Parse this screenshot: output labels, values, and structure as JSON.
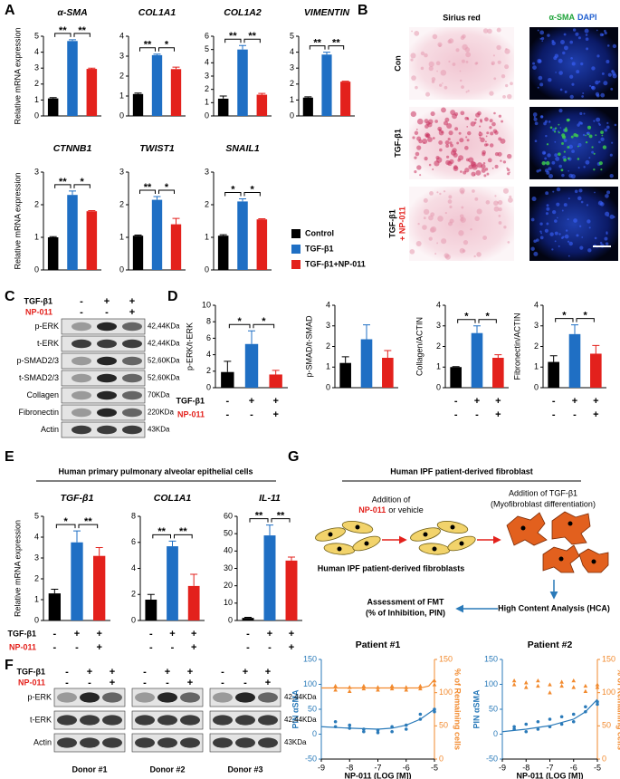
{
  "chart_data": [
    {
      "type": "bar",
      "title": "α-SMA",
      "ylabel": "Relative mRNA expression",
      "values": [
        1.1,
        4.7,
        2.95
      ],
      "errors": [
        0.05,
        0.08,
        0.05
      ],
      "colors": [
        "#000000",
        "#1f6fc4",
        "#e3211c"
      ],
      "ylim": [
        0,
        5
      ],
      "yticks": [
        0,
        1,
        2,
        3,
        4,
        5
      ],
      "significance": [
        "**",
        "**"
      ]
    },
    {
      "type": "bar",
      "title": "COL1A1",
      "values": [
        1.1,
        3.05,
        2.35
      ],
      "errors": [
        0.05,
        0.05,
        0.1
      ],
      "colors": [
        "#000000",
        "#1f6fc4",
        "#e3211c"
      ],
      "ylim": [
        0,
        4
      ],
      "yticks": [
        0,
        1,
        2,
        3,
        4
      ],
      "significance": [
        "**",
        "*"
      ]
    },
    {
      "type": "bar",
      "title": "COL1A2",
      "values": [
        1.3,
        5.0,
        1.6
      ],
      "errors": [
        0.2,
        0.3,
        0.1
      ],
      "colors": [
        "#000000",
        "#1f6fc4",
        "#e3211c"
      ],
      "ylim": [
        0,
        6
      ],
      "yticks": [
        0,
        1,
        2,
        3,
        4,
        5,
        6
      ],
      "significance": [
        "**",
        "**"
      ]
    },
    {
      "type": "bar",
      "title": "VIMENTIN",
      "values": [
        1.15,
        3.85,
        2.15
      ],
      "errors": [
        0.05,
        0.15,
        0.03
      ],
      "colors": [
        "#000000",
        "#1f6fc4",
        "#e3211c"
      ],
      "ylim": [
        0,
        5
      ],
      "yticks": [
        0,
        1,
        2,
        3,
        4,
        5
      ],
      "significance": [
        "**",
        "**"
      ]
    },
    {
      "type": "bar",
      "title": "CTNNB1",
      "ylabel": "Relative mRNA expression",
      "values": [
        1.0,
        2.3,
        1.8
      ],
      "errors": [
        0.02,
        0.12,
        0.02
      ],
      "colors": [
        "#000000",
        "#1f6fc4",
        "#e3211c"
      ],
      "ylim": [
        0,
        3
      ],
      "yticks": [
        0,
        1,
        2,
        3
      ],
      "significance": [
        "**",
        "*"
      ]
    },
    {
      "type": "bar",
      "title": "TWIST1",
      "values": [
        1.05,
        2.15,
        1.4
      ],
      "errors": [
        0.02,
        0.1,
        0.18
      ],
      "colors": [
        "#000000",
        "#1f6fc4",
        "#e3211c"
      ],
      "ylim": [
        0,
        3
      ],
      "yticks": [
        0,
        1,
        2,
        3
      ],
      "significance": [
        "**",
        "*"
      ]
    },
    {
      "type": "bar",
      "title": "SNAIL1",
      "values": [
        1.05,
        2.1,
        1.55
      ],
      "errors": [
        0.03,
        0.08,
        0.02
      ],
      "colors": [
        "#000000",
        "#1f6fc4",
        "#e3211c"
      ],
      "ylim": [
        0,
        3
      ],
      "yticks": [
        0,
        1,
        2,
        3
      ],
      "significance": [
        "*",
        "*"
      ]
    },
    {
      "type": "bar",
      "ylabel": "p-ERK/t-ERK",
      "values": [
        1.9,
        5.3,
        1.6
      ],
      "errors": [
        1.3,
        1.6,
        0.5
      ],
      "colors": [
        "#000000",
        "#1f6fc4",
        "#e3211c"
      ],
      "ylim": [
        0,
        10
      ],
      "yticks": [
        0,
        2,
        4,
        6,
        8,
        10
      ],
      "significance": [
        "*",
        "*"
      ],
      "treatments": [
        [
          "-",
          "+",
          "+"
        ],
        [
          "-",
          "-",
          "+"
        ]
      ]
    },
    {
      "type": "bar",
      "ylabel": "p-SMAD/t-SMAD",
      "values": [
        1.2,
        2.35,
        1.45
      ],
      "errors": [
        0.3,
        0.7,
        0.35
      ],
      "colors": [
        "#000000",
        "#1f6fc4",
        "#e3211c"
      ],
      "ylim": [
        0,
        4
      ],
      "yticks": [
        0,
        1,
        2,
        3,
        4
      ]
    },
    {
      "type": "bar",
      "ylabel": "Collagen/ACTIN",
      "values": [
        1.0,
        2.65,
        1.45
      ],
      "errors": [
        0.02,
        0.35,
        0.15
      ],
      "colors": [
        "#000000",
        "#1f6fc4",
        "#e3211c"
      ],
      "ylim": [
        0,
        4
      ],
      "yticks": [
        0,
        1,
        2,
        3,
        4
      ],
      "significance": [
        "*",
        "*"
      ],
      "treatments": [
        [
          "-",
          "+",
          "+"
        ],
        [
          "-",
          "-",
          "+"
        ]
      ]
    },
    {
      "type": "bar",
      "ylabel": "Fibronectin/ACTIN",
      "values": [
        1.25,
        2.6,
        1.65
      ],
      "errors": [
        0.3,
        0.45,
        0.4
      ],
      "colors": [
        "#000000",
        "#1f6fc4",
        "#e3211c"
      ],
      "ylim": [
        0,
        4
      ],
      "yticks": [
        0,
        1,
        2,
        3,
        4
      ],
      "significance": [
        "*",
        "*"
      ],
      "treatments": [
        [
          "-",
          "+",
          "+"
        ],
        [
          "-",
          "-",
          "+"
        ]
      ]
    },
    {
      "type": "bar",
      "title": "TGF-β1",
      "ylabel": "Relative mRNA expression",
      "values": [
        1.3,
        3.75,
        3.1
      ],
      "errors": [
        0.2,
        0.55,
        0.4
      ],
      "colors": [
        "#000000",
        "#1f6fc4",
        "#e3211c"
      ],
      "ylim": [
        0,
        5
      ],
      "yticks": [
        0,
        1,
        2,
        3,
        4,
        5
      ],
      "significance": [
        "*",
        "**"
      ],
      "treatments": [
        [
          "-",
          "+",
          "+"
        ],
        [
          "-",
          "-",
          "+"
        ]
      ]
    },
    {
      "type": "bar",
      "title": "COL1A1",
      "values": [
        1.6,
        5.7,
        2.65
      ],
      "errors": [
        0.4,
        0.4,
        0.9
      ],
      "colors": [
        "#000000",
        "#1f6fc4",
        "#e3211c"
      ],
      "ylim": [
        0,
        8
      ],
      "yticks": [
        0,
        2,
        4,
        6,
        8
      ],
      "significance": [
        "**",
        "**"
      ],
      "treatments": [
        [
          "-",
          "+",
          "+"
        ],
        [
          "-",
          "-",
          "+"
        ]
      ]
    },
    {
      "type": "bar",
      "title": "IL-11",
      "values": [
        1.5,
        49,
        34.5
      ],
      "errors": [
        0.3,
        6,
        2
      ],
      "colors": [
        "#000000",
        "#1f6fc4",
        "#e3211c"
      ],
      "ylim": [
        0,
        60
      ],
      "yticks": [
        0,
        10,
        20,
        30,
        40,
        50,
        60
      ],
      "significance": [
        "**",
        "**"
      ],
      "treatments": [
        [
          "-",
          "+",
          "+"
        ],
        [
          "-",
          "-",
          "+"
        ]
      ]
    },
    {
      "type": "scatter",
      "title": "Patient #1",
      "xlabel": "NP-011 (LOG [M])",
      "ylabel": "PIN αSMA",
      "y2label": "% of Remaining cells",
      "xlim": [
        -9,
        -5
      ],
      "xticks": [
        -9,
        -8,
        -7,
        -6,
        -5
      ],
      "ylim": [
        -50,
        150
      ],
      "yticks": [
        -50,
        0,
        50,
        100,
        150
      ],
      "y2lim": [
        0,
        150
      ],
      "y2ticks": [
        0,
        50,
        100,
        150
      ],
      "series": [
        {
          "color": "#2a7ab9",
          "marker": "circle",
          "x": [
            -8.5,
            -8.5,
            -8,
            -8,
            -7.5,
            -7.5,
            -7,
            -7,
            -6.5,
            -6.5,
            -6,
            -6,
            -5.5,
            -5.5,
            -5,
            -5
          ],
          "values": [
            25,
            15,
            12,
            18,
            5,
            10,
            3,
            8,
            15,
            5,
            18,
            10,
            40,
            30,
            50,
            45
          ]
        },
        {
          "color": "#f28a2e",
          "marker": "triangle",
          "axis": "y2",
          "x": [
            -8.5,
            -8.5,
            -8,
            -8,
            -7.5,
            -7.5,
            -7,
            -7,
            -6.5,
            -6.5,
            -6,
            -6,
            -5.5,
            -5.5,
            -5,
            -5
          ],
          "values": [
            110,
            104,
            108,
            102,
            106,
            110,
            108,
            104,
            106,
            110,
            104,
            108,
            106,
            110,
            112,
            118
          ]
        },
        {
          "color": "#2a7ab9",
          "style": "line",
          "x": [
            -9,
            -8,
            -7,
            -6.5,
            -6,
            -5.5,
            -5
          ],
          "values": [
            15,
            12,
            10,
            12,
            18,
            30,
            50
          ]
        },
        {
          "color": "#f28a2e",
          "style": "line",
          "axis": "y2",
          "x": [
            -9,
            -5.5,
            -5.2,
            -5
          ],
          "values": [
            107,
            107,
            110,
            120
          ]
        }
      ]
    },
    {
      "type": "scatter",
      "title": "Patient #2",
      "xlabel": "NP-011 (LOG [M])",
      "ylabel": "PIN αSMA",
      "y2label": "% of Remaining cells",
      "xlim": [
        -9,
        -5
      ],
      "xticks": [
        -9,
        -8,
        -7,
        -6,
        -5
      ],
      "ylim": [
        -50,
        150
      ],
      "yticks": [
        -50,
        0,
        50,
        100,
        150
      ],
      "y2lim": [
        0,
        150
      ],
      "y2ticks": [
        0,
        50,
        100,
        150
      ],
      "series": [
        {
          "color": "#2a7ab9",
          "marker": "circle",
          "x": [
            -8.5,
            -8.5,
            -8,
            -8,
            -7.5,
            -7.5,
            -7,
            -7,
            -6.5,
            -6.5,
            -6,
            -6,
            -5.5,
            -5.5,
            -5,
            -5
          ],
          "values": [
            10,
            15,
            5,
            20,
            10,
            25,
            15,
            30,
            20,
            35,
            40,
            25,
            55,
            45,
            65,
            60
          ]
        },
        {
          "color": "#f28a2e",
          "marker": "triangle",
          "axis": "y2",
          "x": [
            -8.5,
            -8.5,
            -8,
            -8,
            -7.5,
            -7.5,
            -7,
            -7,
            -6.5,
            -6.5,
            -6,
            -6,
            -5.5,
            -5.5,
            -5,
            -5
          ],
          "values": [
            118,
            112,
            115,
            108,
            110,
            118,
            100,
            112,
            116,
            110,
            108,
            118,
            102,
            110,
            112,
            108
          ]
        },
        {
          "color": "#2a7ab9",
          "style": "line",
          "x": [
            -9,
            -8,
            -7,
            -6,
            -5.5,
            -5
          ],
          "values": [
            5,
            10,
            17,
            30,
            45,
            70
          ]
        }
      ]
    }
  ],
  "panels": {
    "A": {
      "letter": "A",
      "legend": [
        {
          "name": "Control",
          "color": "#000000"
        },
        {
          "name": "TGF-β1",
          "color": "#1f6fc4"
        },
        {
          "name": "TGF-β1+NP-011",
          "color": "#e3211c"
        }
      ]
    },
    "B": {
      "letter": "B",
      "sirius_title": "Sirius red",
      "stain_titles": [
        "α-SMA",
        "DAPI"
      ],
      "rows": [
        "Con",
        "TGF-β1",
        {
          "line1": "TGF-β1",
          "line2": "+ NP-011"
        }
      ]
    },
    "C": {
      "letter": "C",
      "conditions": [
        {
          "label": "TGF-β1",
          "signs": [
            "-",
            "+",
            "+"
          ]
        },
        {
          "label": "NP-011",
          "signs": [
            "-",
            "-",
            "+"
          ]
        }
      ],
      "bands": [
        {
          "name": "p-ERK",
          "size": "42,44KDa"
        },
        {
          "name": "t-ERK",
          "size": "42,44KDa"
        },
        {
          "name": "p-SMAD2/3",
          "size": "52,60KDa"
        },
        {
          "name": "t-SMAD2/3",
          "size": "52,60KDa"
        },
        {
          "name": "Collagen",
          "size": "70KDa"
        },
        {
          "name": "Fibronectin",
          "size": "220KDa"
        },
        {
          "name": "Actin",
          "size": "43KDa"
        }
      ]
    },
    "D": {
      "letter": "D",
      "treatment_labels": [
        "TGF-β1",
        "NP-011"
      ]
    },
    "E": {
      "letter": "E",
      "title": "Human primary pulmonary alveolar epithelial cells",
      "treatment_labels": [
        "TGF-β1",
        "NP-011"
      ]
    },
    "F": {
      "letter": "F",
      "conditions": [
        {
          "label": "TGF-β1",
          "signs": [
            "-",
            "+",
            "+",
            "-",
            "+",
            "+",
            "-",
            "+",
            "+"
          ]
        },
        {
          "label": "NP-011",
          "signs": [
            "-",
            "-",
            "+",
            "-",
            "-",
            "+",
            "-",
            "-",
            "+"
          ]
        }
      ],
      "bands": [
        {
          "name": "p-ERK",
          "size": "42,44KDa"
        },
        {
          "name": "t-ERK",
          "size": "42,44KDa"
        },
        {
          "name": "Actin",
          "size": "43KDa"
        }
      ],
      "donors": [
        "Donor #1",
        "Donor #2",
        "Donor #3"
      ]
    },
    "G": {
      "letter": "G",
      "title": "Human IPF patient-derived fibroblast",
      "steps": {
        "add_drug": "Addition of",
        "drug": "NP-011",
        "drug_rest": "or vehicle",
        "add_tgf": "Addition of TGF-β1",
        "differentiation": "(Myofibroblast differentiation)",
        "cells": "Human IPF patient-derived fibroblasts",
        "hca": "High Content Analysis (HCA)",
        "fmt": "Assessment of FMT",
        "fmt_detail": "(% of Inhibition, PIN)"
      }
    }
  }
}
